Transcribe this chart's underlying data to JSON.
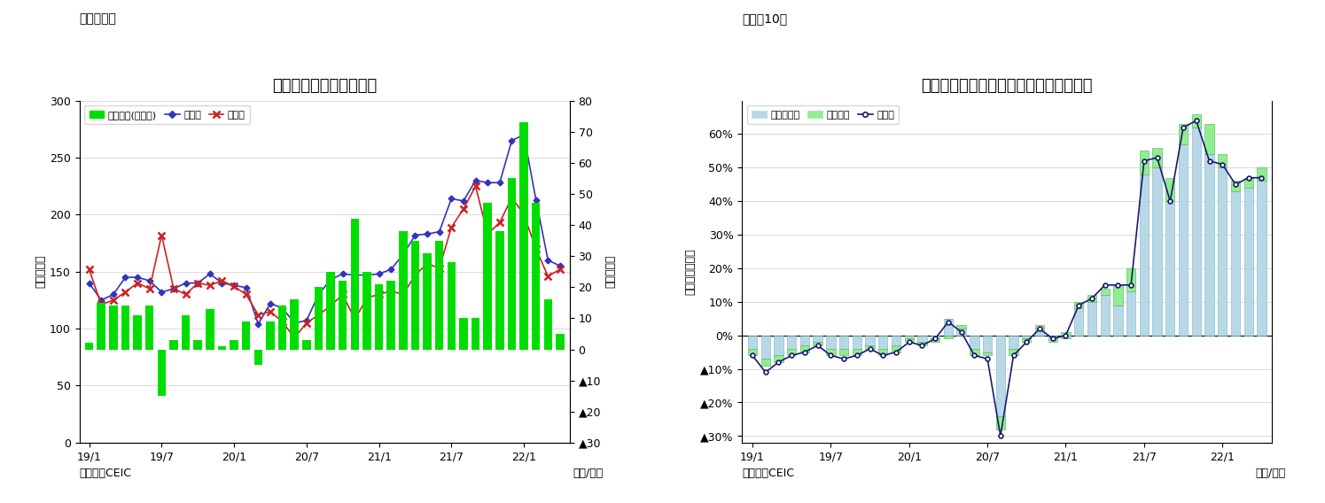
{
  "chart1": {
    "title": "インドネシア　貿易収支",
    "label_top": "（図表９）",
    "ylabel_left": "（億ドル）",
    "ylabel_right": "（億ドル）",
    "xlabel": "（年/月）",
    "source": "（資料）CEIC",
    "ylim_left": [
      0,
      300
    ],
    "ylim_right": [
      -30,
      80
    ],
    "yticks_left": [
      0,
      50,
      100,
      150,
      200,
      250,
      300
    ],
    "yticks_right_pos": [
      0,
      10,
      20,
      30,
      40,
      50,
      60,
      70,
      80
    ],
    "yticks_right_neg": [
      -10,
      -20,
      -30
    ],
    "xtick_labels": [
      "19/1",
      "19/7",
      "20/1",
      "20/7",
      "21/1",
      "21/7",
      "22/1"
    ],
    "bar_color": "#00dd00",
    "line1_color": "#3333bb",
    "line2_color": "#cc2222",
    "legend_labels": [
      "貿易収支(右目盛)",
      "輸出額",
      "輸入額"
    ],
    "trade_balance": [
      2,
      15,
      14,
      14,
      11,
      14,
      -15,
      3,
      11,
      3,
      13,
      1,
      3,
      9,
      -5,
      9,
      14,
      16,
      3,
      20,
      25,
      22,
      42,
      25,
      21,
      22,
      38,
      35,
      31,
      35,
      28,
      10,
      10,
      47,
      38,
      55,
      73,
      47,
      16,
      5
    ],
    "exports": [
      140,
      125,
      130,
      145,
      145,
      142,
      132,
      135,
      140,
      140,
      148,
      140,
      138,
      136,
      104,
      122,
      118,
      105,
      107,
      130,
      143,
      148,
      147,
      147,
      148,
      152,
      165,
      182,
      183,
      185,
      214,
      212,
      230,
      228,
      228,
      265,
      270,
      213,
      160,
      155
    ],
    "imports": [
      152,
      121,
      125,
      132,
      140,
      135,
      182,
      135,
      130,
      140,
      138,
      142,
      137,
      130,
      112,
      115,
      106,
      92,
      105,
      112,
      120,
      130,
      108,
      127,
      130,
      133,
      130,
      147,
      157,
      153,
      189,
      205,
      225,
      183,
      193,
      215,
      200,
      170,
      146,
      152
    ]
  },
  "chart2": {
    "title": "インドネシア　輸出の伸び率（品目別）",
    "label_top": "（図表10）",
    "ylabel_left": "（前年同月比）",
    "xlabel": "（年/月）",
    "source": "（資料）CEIC",
    "ylim": [
      -0.32,
      0.7
    ],
    "yticks_pos": [
      0.0,
      0.1,
      0.2,
      0.3,
      0.4,
      0.5,
      0.6
    ],
    "yticks_neg": [
      -0.1,
      -0.2,
      -0.3
    ],
    "xtick_labels": [
      "19/1",
      "19/7",
      "20/1",
      "20/7",
      "21/1",
      "21/7",
      "22/1"
    ],
    "bar1_color": "#b8d8e8",
    "bar2_color": "#90ee90",
    "bar1_edge": "#7ab0c8",
    "bar2_edge": "#50aa50",
    "line_color": "#1a1a6e",
    "legend_labels": [
      "非石油ガス",
      "石油ガス",
      "輸出額"
    ],
    "non_oil_gas": [
      -0.04,
      -0.07,
      -0.06,
      -0.04,
      -0.03,
      -0.02,
      -0.04,
      -0.04,
      -0.04,
      -0.03,
      -0.04,
      -0.03,
      -0.01,
      -0.02,
      -0.01,
      0.05,
      0.02,
      -0.04,
      -0.05,
      -0.24,
      -0.04,
      -0.01,
      0.02,
      -0.01,
      -0.01,
      0.08,
      0.1,
      0.12,
      0.09,
      0.13,
      0.48,
      0.5,
      0.4,
      0.57,
      0.62,
      0.54,
      0.5,
      0.43,
      0.44,
      0.46
    ],
    "oil_gas": [
      -0.02,
      -0.02,
      -0.02,
      -0.02,
      -0.02,
      -0.01,
      -0.02,
      -0.02,
      -0.02,
      -0.01,
      -0.02,
      -0.02,
      -0.01,
      -0.01,
      -0.01,
      -0.01,
      0.01,
      -0.02,
      -0.01,
      -0.04,
      -0.02,
      -0.01,
      0.01,
      -0.01,
      0.01,
      0.02,
      0.02,
      0.02,
      0.06,
      0.07,
      0.07,
      0.06,
      0.07,
      0.06,
      0.04,
      0.09,
      0.04,
      0.03,
      0.03,
      0.04
    ],
    "total_exports": [
      -0.06,
      -0.11,
      -0.08,
      -0.06,
      -0.05,
      -0.03,
      -0.06,
      -0.07,
      -0.06,
      -0.04,
      -0.06,
      -0.05,
      -0.02,
      -0.03,
      -0.01,
      0.04,
      0.01,
      -0.06,
      -0.07,
      -0.3,
      -0.06,
      -0.02,
      0.02,
      -0.01,
      0.0,
      0.09,
      0.11,
      0.15,
      0.15,
      0.15,
      0.52,
      0.53,
      0.4,
      0.62,
      0.64,
      0.52,
      0.51,
      0.45,
      0.47,
      0.47
    ]
  },
  "bg_color": "#ffffff"
}
